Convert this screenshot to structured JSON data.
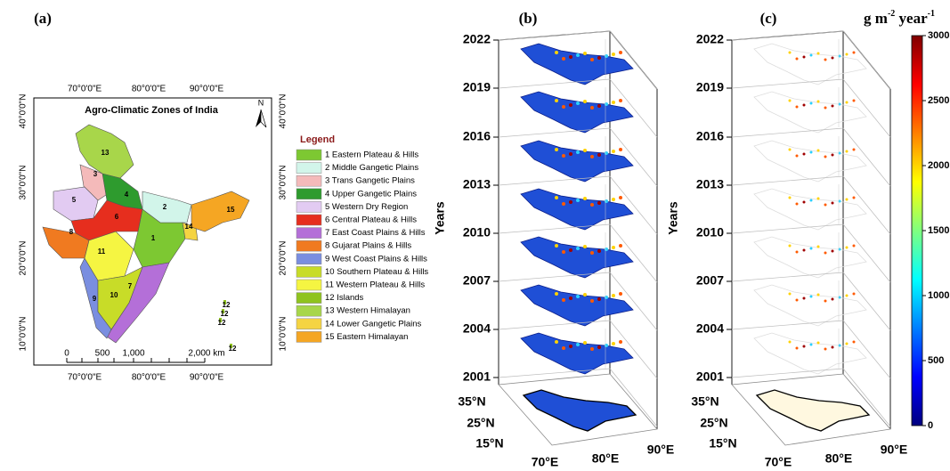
{
  "panel_a": {
    "label": "(a)",
    "title": "Agro-Climatic Zones of India",
    "north": "N",
    "lon_labels": [
      "70°0'0\"E",
      "80°0'0\"E",
      "90°0'0\"E"
    ],
    "lat_labels": [
      "10°0'0\"N",
      "20°0'0\"N",
      "30°0'0\"N",
      "40°0'0\"N"
    ],
    "scale_labels": [
      "0",
      "500",
      "1,000",
      "2,000 km"
    ],
    "zone_labels": [
      "1",
      "2",
      "3",
      "4",
      "5",
      "6",
      "7",
      "8",
      "9",
      "10",
      "11",
      "13",
      "14",
      "15"
    ],
    "island_labels": [
      "12",
      "12",
      "12",
      "12"
    ],
    "legend": {
      "title": "Legend",
      "items": [
        {
          "label": "1 Eastern Plateau & Hills",
          "color": "#7dc832"
        },
        {
          "label": "2 Middle Gangetic Plains",
          "color": "#d2f5ea"
        },
        {
          "label": "3 Trans Gangetic Plains",
          "color": "#f4baba"
        },
        {
          "label": "4 Upper Gangetic Plains",
          "color": "#2e9b2e"
        },
        {
          "label": "5 Western Dry Region",
          "color": "#e2cbf2"
        },
        {
          "label": "6 Central Plateau & Hills",
          "color": "#e62e1e"
        },
        {
          "label": "7 East Coast Plains & Hills",
          "color": "#b46fd8"
        },
        {
          "label": "8 Gujarat Plains & Hills",
          "color": "#f07a20"
        },
        {
          "label": "9 West Coast Plains & Hills",
          "color": "#7a8ee0"
        },
        {
          "label": "10 Southern Plateau & Hills",
          "color": "#c8dc28"
        },
        {
          "label": "11 Western Plateau & Hills",
          "color": "#f5f542"
        },
        {
          "label": "12 Islands",
          "color": "#8fc31f"
        },
        {
          "label": "13 Western Himalayan",
          "color": "#a8d64a"
        },
        {
          "label": "14 Lower Gangetic Plains",
          "color": "#f5d442"
        },
        {
          "label": "15 Eastern Himalayan",
          "color": "#f5a623"
        }
      ]
    }
  },
  "panel_b": {
    "label": "(b)",
    "y_title": "Years",
    "years": [
      2022,
      2019,
      2016,
      2013,
      2010,
      2007,
      2004,
      2001
    ],
    "lat_labels": [
      "35°N",
      "25°N",
      "15°N"
    ],
    "lon_labels": [
      "70°E",
      "80°E",
      "90°E"
    ]
  },
  "panel_c": {
    "label": "(c)",
    "y_title": "Years",
    "years": [
      2022,
      2019,
      2016,
      2013,
      2010,
      2007,
      2004,
      2001
    ],
    "lat_labels": [
      "35°N",
      "25°N",
      "15°N"
    ],
    "lon_labels": [
      "70°E",
      "80°E",
      "90°E"
    ]
  },
  "colorbar": {
    "title": [
      "g m",
      "-2",
      " year",
      "-1"
    ],
    "ticks": [
      0,
      500,
      1000,
      1500,
      2000,
      2500,
      3000
    ],
    "lim": [
      0,
      3000
    ],
    "colors": [
      "#00007f",
      "#0000ff",
      "#007fff",
      "#00ffff",
      "#7fff7f",
      "#ffff00",
      "#ff7f00",
      "#ff0000",
      "#7f0000"
    ]
  }
}
